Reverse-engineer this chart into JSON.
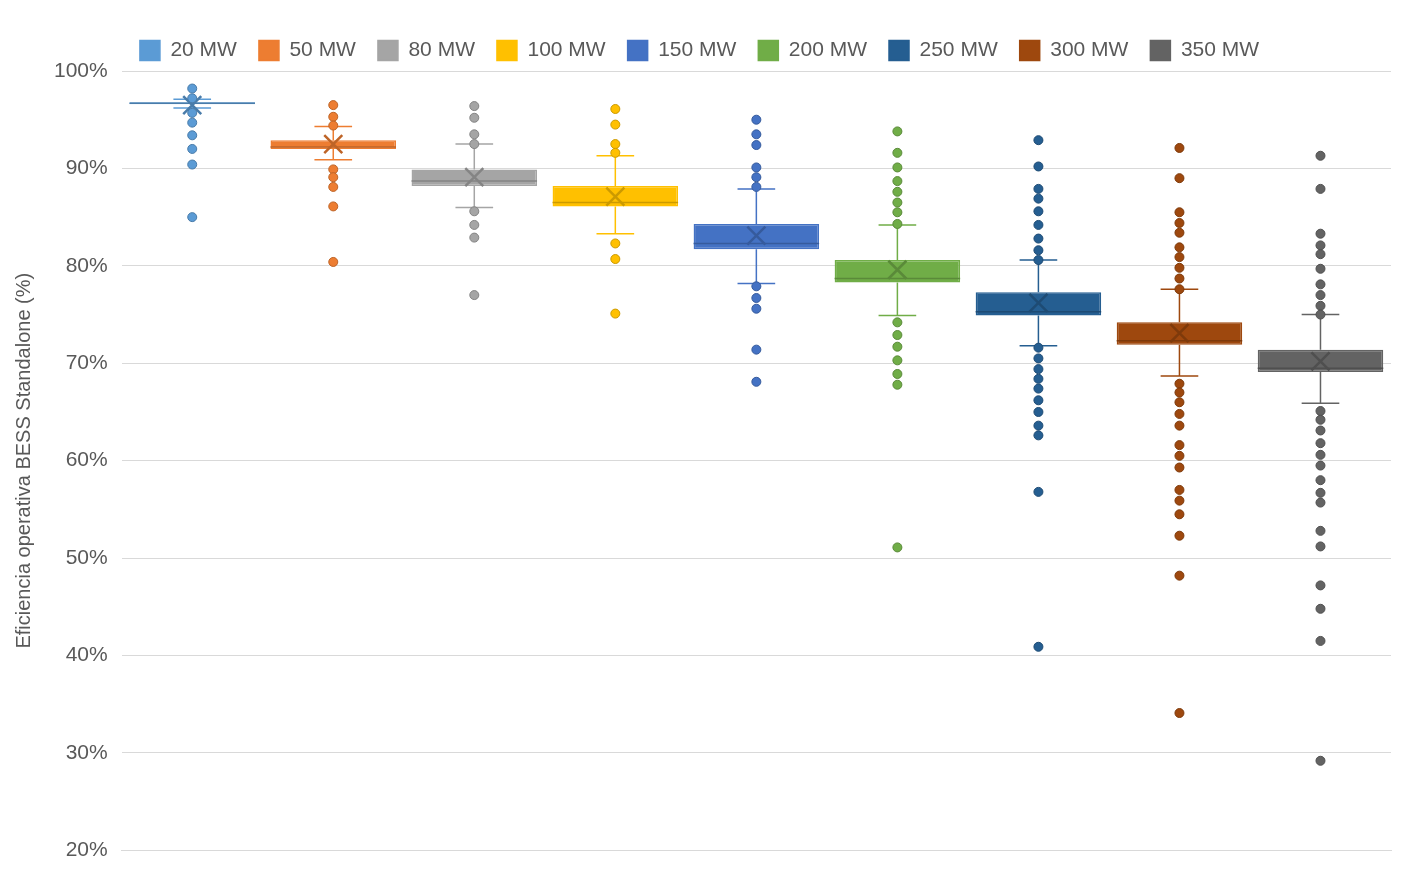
{
  "chart_data": {
    "type": "box",
    "ylabel": "Eficiencia operativa BESS Standalone (%)",
    "categories": [
      null
    ],
    "ylim": [
      20,
      100
    ],
    "yticks": [
      {
        "value": 20,
        "label": "20%"
      },
      {
        "value": 30,
        "label": "30%"
      },
      {
        "value": 40,
        "label": "40%"
      },
      {
        "value": 50,
        "label": "50%"
      },
      {
        "value": 60,
        "label": "60%"
      },
      {
        "value": 70,
        "label": "70%"
      },
      {
        "value": 80,
        "label": "80%"
      },
      {
        "value": 90,
        "label": "90%"
      },
      {
        "value": 100,
        "label": "100%"
      }
    ],
    "grid": "y",
    "legend": "top",
    "series": [
      {
        "name": "20 MW",
        "color": "#5b9bd5",
        "boxes": [
          {
            "low": 96.2,
            "q1": 96.6,
            "median": 96.7,
            "q3": 96.8,
            "high": 97.1,
            "mean": 96.5,
            "outliers": [
              98.2,
              97.2,
              95.7,
              94.7,
              93.4,
              92.0,
              90.4,
              85.0
            ]
          }
        ]
      },
      {
        "name": "50 MW",
        "color": "#ed7d31",
        "boxes": [
          {
            "low": 90.9,
            "q1": 92.0,
            "median": 92.2,
            "q3": 92.9,
            "high": 94.3,
            "mean": 92.5,
            "outliers": [
              96.5,
              95.3,
              94.4,
              89.9,
              89.1,
              88.1,
              86.1,
              80.4
            ]
          }
        ]
      },
      {
        "name": "80 MW",
        "color": "#a5a5a5",
        "boxes": [
          {
            "low": 86.0,
            "q1": 88.2,
            "median": 88.7,
            "q3": 89.9,
            "high": 92.5,
            "mean": 89.1,
            "outliers": [
              96.4,
              95.2,
              93.5,
              92.5,
              85.6,
              84.2,
              82.9,
              77.0
            ]
          }
        ]
      },
      {
        "name": "100 MW",
        "color": "#ffc000",
        "boxes": [
          {
            "low": 83.3,
            "q1": 86.1,
            "median": 86.5,
            "q3": 88.2,
            "high": 91.3,
            "mean": 87.1,
            "outliers": [
              96.1,
              94.5,
              92.5,
              91.6,
              82.3,
              80.7,
              75.1
            ]
          }
        ]
      },
      {
        "name": "150 MW",
        "color": "#4472c4",
        "boxes": [
          {
            "low": 78.2,
            "q1": 81.7,
            "median": 82.3,
            "q3": 84.3,
            "high": 87.9,
            "mean": 83.1,
            "outliers": [
              95.0,
              93.5,
              92.4,
              90.1,
              89.1,
              88.1,
              77.9,
              76.7,
              75.6,
              71.4,
              68.1
            ]
          }
        ]
      },
      {
        "name": "200 MW",
        "color": "#70ad47",
        "boxes": [
          {
            "low": 74.9,
            "q1": 78.3,
            "median": 78.7,
            "q3": 80.6,
            "high": 84.2,
            "mean": 79.6,
            "outliers": [
              93.8,
              91.6,
              90.1,
              88.7,
              87.6,
              86.5,
              85.5,
              84.3,
              74.2,
              72.9,
              71.7,
              70.3,
              68.9,
              67.8,
              51.1
            ]
          }
        ]
      },
      {
        "name": "250 MW",
        "color": "#255e91",
        "boxes": [
          {
            "low": 71.8,
            "q1": 74.9,
            "median": 75.3,
            "q3": 77.3,
            "high": 80.6,
            "mean": 76.2,
            "outliers": [
              92.9,
              90.2,
              87.9,
              86.9,
              85.6,
              84.2,
              82.8,
              81.6,
              80.6,
              71.6,
              70.5,
              69.4,
              68.4,
              67.4,
              66.2,
              65.0,
              63.6,
              62.6,
              56.8,
              40.9
            ]
          }
        ]
      },
      {
        "name": "300 MW",
        "color": "#9e480e",
        "boxes": [
          {
            "low": 68.7,
            "q1": 71.9,
            "median": 72.3,
            "q3": 74.2,
            "high": 77.6,
            "mean": 73.1,
            "outliers": [
              92.1,
              89.0,
              85.5,
              84.4,
              83.4,
              81.9,
              80.9,
              79.8,
              78.7,
              77.6,
              67.9,
              67.0,
              66.0,
              64.8,
              63.6,
              61.6,
              60.5,
              59.3,
              57.0,
              55.9,
              54.5,
              52.3,
              48.2,
              34.1
            ]
          }
        ]
      },
      {
        "name": "350 MW",
        "color": "#636363",
        "boxes": [
          {
            "low": 65.9,
            "q1": 69.1,
            "median": 69.5,
            "q3": 71.4,
            "high": 75.0,
            "mean": 70.2,
            "outliers": [
              91.3,
              87.9,
              83.3,
              82.1,
              81.2,
              79.7,
              78.1,
              77.0,
              75.9,
              75.0,
              65.1,
              64.2,
              63.1,
              61.8,
              60.6,
              59.5,
              58.0,
              56.7,
              55.7,
              52.8,
              51.2,
              47.2,
              44.8,
              41.5,
              29.2
            ]
          }
        ]
      }
    ]
  }
}
